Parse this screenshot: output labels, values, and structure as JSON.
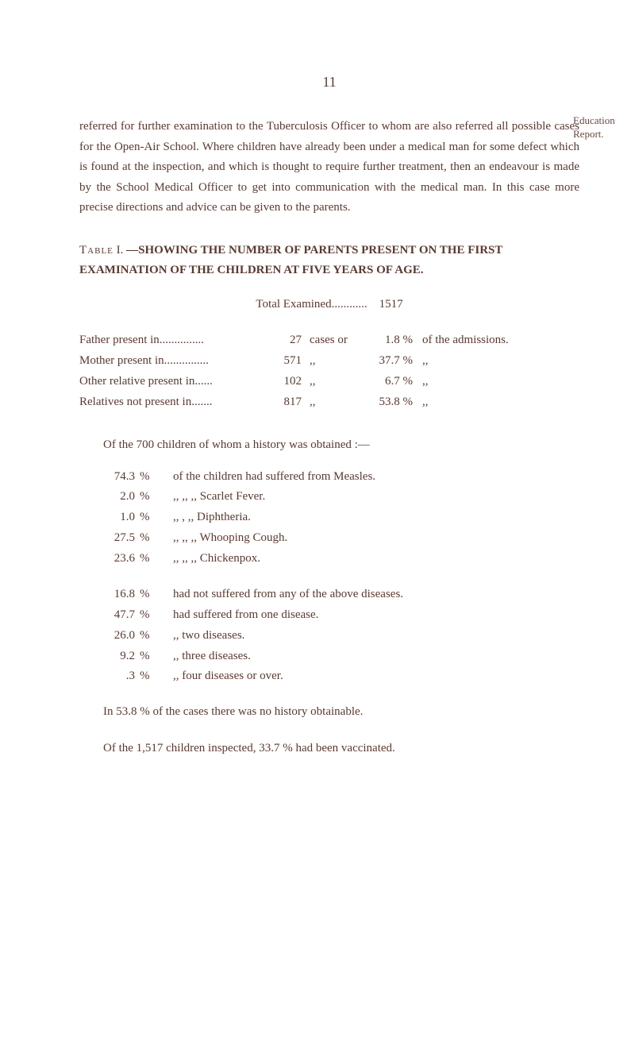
{
  "page_number": "11",
  "margin_note_line1": "Education",
  "margin_note_line2": "Report.",
  "intro_paragraph": "referred for further examination to the Tuberculosis Officer to whom are also referred all possible cases for the Open-Air School. Where children have already been under a medical man for some defect which is found at the inspection, and which is thought to require further treatment, then an endeavour is made by the School Medical Officer to get into communication with the medical man. In this case more precise directions and advice can be given to the parents.",
  "table_label_prefix": "Table",
  "table_number": "I.",
  "table_title": "—SHOWING THE NUMBER OF PARENTS PRESENT ON THE FIRST EXAMINATION OF THE CHILDREN AT FIVE YEARS OF AGE.",
  "total_examined_label": "Total Examined............",
  "total_examined_value": "1517",
  "rows": [
    {
      "label": "Father present in...............",
      "num": "27",
      "unit": "cases or",
      "pct": "1.8 %",
      "rest": "of the admissions."
    },
    {
      "label": "Mother present in...............",
      "num": "571",
      "unit": ",,",
      "pct": "37.7 %",
      "rest": ",,"
    },
    {
      "label": "Other relative present in......",
      "num": "102",
      "unit": ",,",
      "pct": "6.7 %",
      "rest": ",,"
    },
    {
      "label": "Relatives not present in.......",
      "num": "817",
      "unit": ",,",
      "pct": "53.8 %",
      "rest": ",,"
    }
  ],
  "history_line": "Of the 700 children of whom a history was obtained :—",
  "measles_rows": [
    {
      "pct": "74.3",
      "sym": "%",
      "text": "of the children had suffered from Measles."
    },
    {
      "pct": "2.0",
      "sym": "%",
      "text": ",,              ,,              ,,          Scarlet Fever."
    },
    {
      "pct": "1.0",
      "sym": "%",
      "text": ",,              ,               ,,          Diphtheria."
    },
    {
      "pct": "27.5",
      "sym": "%",
      "text": ",,              ,,              ,,          Whooping Cough."
    },
    {
      "pct": "23.6",
      "sym": "%",
      "text": ",,              ,,              ,,          Chickenpox."
    }
  ],
  "disease_rows": [
    {
      "pct": "16.8",
      "sym": "%",
      "text": "had not suffered from any of the above diseases."
    },
    {
      "pct": "47.7",
      "sym": "%",
      "text": "had suffered from one disease."
    },
    {
      "pct": "26.0",
      "sym": "%",
      "text": "            ,,            two diseases."
    },
    {
      "pct": "9.2",
      "sym": "%",
      "text": "            ,,            three diseases."
    },
    {
      "pct": ".3",
      "sym": "%",
      "text": "            ,,            four diseases or over."
    }
  ],
  "closing_line1": "In 53.8 % of the cases there was no history obtainable.",
  "closing_line2": "Of the 1,517 children inspected, 33.7 % had been vaccinated."
}
